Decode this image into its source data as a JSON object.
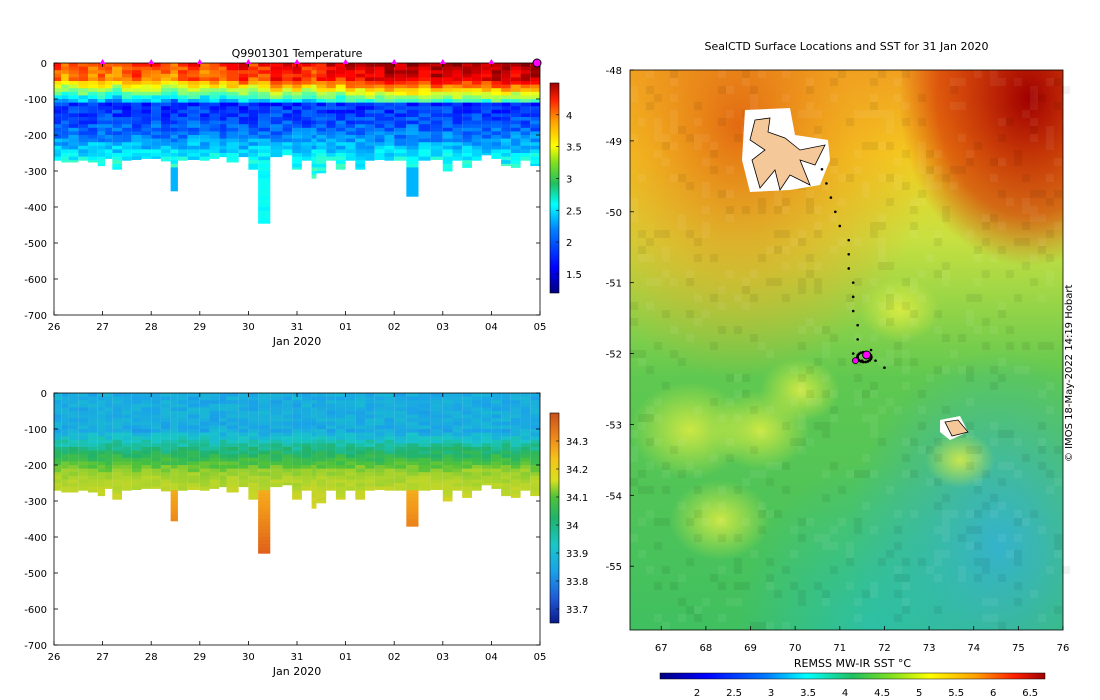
{
  "figure": {
    "credit": "© IMOS 18-May-2022 14:19 Hobart"
  },
  "colors": {
    "jet": [
      "#00007f",
      "#0000ff",
      "#007fff",
      "#00ffff",
      "#7fff7f",
      "#ffff00",
      "#ff7f00",
      "#ff0000",
      "#7f0000"
    ],
    "parula_like": [
      "#0a1a8c",
      "#1f5bd8",
      "#1aa3e8",
      "#19c7c7",
      "#21b36b",
      "#4fc23a",
      "#b8d62a",
      "#f2d21e",
      "#f29a1a",
      "#e0631a",
      "#a81b0f"
    ],
    "land": "#f5c89a",
    "track_marker": "#ff00ff"
  },
  "chart_data": [
    {
      "id": "temperature",
      "type": "heatmap",
      "title": "Q9901301  Temperature",
      "xlabel": "Jan 2020",
      "ylabel": "",
      "x_ticks": [
        "26",
        "27",
        "28",
        "29",
        "30",
        "31",
        "01",
        "02",
        "03",
        "04",
        "05"
      ],
      "y_ticks": [
        0,
        -100,
        -200,
        -300,
        -400,
        -500,
        -600,
        -700
      ],
      "ylim": [
        -700,
        0
      ],
      "xlim": [
        26,
        36
      ],
      "profile_markers_x": [
        27,
        28,
        29,
        30,
        31,
        32,
        33,
        34,
        35
      ],
      "colorbar": {
        "ticks": [
          1.5,
          2,
          2.5,
          3,
          3.5,
          4
        ],
        "range": [
          1.2,
          4.5
        ]
      },
      "profiles": [
        {
          "x": 26.0,
          "w": 0.15,
          "bottom": -270,
          "surf": 3.9
        },
        {
          "x": 26.15,
          "w": 0.15,
          "bottom": -275,
          "surf": 3.7
        },
        {
          "x": 26.3,
          "w": 0.2,
          "bottom": -275,
          "surf": 3.8
        },
        {
          "x": 26.5,
          "w": 0.2,
          "bottom": -270,
          "surf": 3.9
        },
        {
          "x": 26.7,
          "w": 0.2,
          "bottom": -275,
          "surf": 3.8
        },
        {
          "x": 26.9,
          "w": 0.15,
          "bottom": -285,
          "surf": 3.9
        },
        {
          "x": 27.05,
          "w": 0.15,
          "bottom": -265,
          "surf": 3.8
        },
        {
          "x": 27.2,
          "w": 0.2,
          "bottom": -295,
          "surf": 3.7
        },
        {
          "x": 27.4,
          "w": 0.2,
          "bottom": -270,
          "surf": 3.9
        },
        {
          "x": 27.6,
          "w": 0.2,
          "bottom": -268,
          "surf": 4.0
        },
        {
          "x": 27.8,
          "w": 0.2,
          "bottom": -265,
          "surf": 3.9
        },
        {
          "x": 28.0,
          "w": 0.2,
          "bottom": -265,
          "surf": 3.9
        },
        {
          "x": 28.2,
          "w": 0.2,
          "bottom": -272,
          "surf": 3.8
        },
        {
          "x": 28.4,
          "w": 0.15,
          "bottom": -355,
          "surf": 3.7
        },
        {
          "x": 28.55,
          "w": 0.2,
          "bottom": -270,
          "surf": 3.9
        },
        {
          "x": 28.75,
          "w": 0.25,
          "bottom": -268,
          "surf": 4.0
        },
        {
          "x": 29.0,
          "w": 0.2,
          "bottom": -270,
          "surf": 3.8
        },
        {
          "x": 29.2,
          "w": 0.2,
          "bottom": -265,
          "surf": 3.9
        },
        {
          "x": 29.4,
          "w": 0.15,
          "bottom": -260,
          "surf": 3.9
        },
        {
          "x": 29.55,
          "w": 0.25,
          "bottom": -275,
          "surf": 4.0
        },
        {
          "x": 29.8,
          "w": 0.2,
          "bottom": -260,
          "surf": 4.1
        },
        {
          "x": 30.0,
          "w": 0.2,
          "bottom": -295,
          "surf": 3.9
        },
        {
          "x": 30.2,
          "w": 0.25,
          "bottom": -445,
          "surf": 4.0
        },
        {
          "x": 30.45,
          "w": 0.25,
          "bottom": -260,
          "surf": 4.2
        },
        {
          "x": 30.7,
          "w": 0.2,
          "bottom": -255,
          "surf": 4.1
        },
        {
          "x": 30.9,
          "w": 0.2,
          "bottom": -295,
          "surf": 4.2
        },
        {
          "x": 31.1,
          "w": 0.2,
          "bottom": -270,
          "surf": 4.0
        },
        {
          "x": 31.3,
          "w": 0.1,
          "bottom": -320,
          "surf": 3.9
        },
        {
          "x": 31.4,
          "w": 0.2,
          "bottom": -305,
          "surf": 4.1
        },
        {
          "x": 31.6,
          "w": 0.2,
          "bottom": -270,
          "surf": 4.2
        },
        {
          "x": 31.8,
          "w": 0.2,
          "bottom": -295,
          "surf": 4.1
        },
        {
          "x": 32.0,
          "w": 0.2,
          "bottom": -270,
          "surf": 4.3
        },
        {
          "x": 32.2,
          "w": 0.2,
          "bottom": -295,
          "surf": 4.2
        },
        {
          "x": 32.4,
          "w": 0.2,
          "bottom": -270,
          "surf": 4.3
        },
        {
          "x": 32.6,
          "w": 0.2,
          "bottom": -268,
          "surf": 4.3
        },
        {
          "x": 32.8,
          "w": 0.2,
          "bottom": -270,
          "surf": 4.4
        },
        {
          "x": 33.0,
          "w": 0.25,
          "bottom": -270,
          "surf": 4.3
        },
        {
          "x": 33.25,
          "w": 0.25,
          "bottom": -370,
          "surf": 4.4
        },
        {
          "x": 33.5,
          "w": 0.25,
          "bottom": -270,
          "surf": 4.3
        },
        {
          "x": 33.75,
          "w": 0.25,
          "bottom": -268,
          "surf": 4.4
        },
        {
          "x": 34.0,
          "w": 0.2,
          "bottom": -300,
          "surf": 4.3
        },
        {
          "x": 34.2,
          "w": 0.2,
          "bottom": -270,
          "surf": 4.4
        },
        {
          "x": 34.4,
          "w": 0.2,
          "bottom": -290,
          "surf": 4.3
        },
        {
          "x": 34.6,
          "w": 0.2,
          "bottom": -270,
          "surf": 4.4
        },
        {
          "x": 34.8,
          "w": 0.2,
          "bottom": -255,
          "surf": 4.3
        },
        {
          "x": 35.0,
          "w": 0.2,
          "bottom": -265,
          "surf": 4.4
        },
        {
          "x": 35.2,
          "w": 0.2,
          "bottom": -285,
          "surf": 4.4
        },
        {
          "x": 35.4,
          "w": 0.2,
          "bottom": -290,
          "surf": 4.3
        },
        {
          "x": 35.6,
          "w": 0.2,
          "bottom": -270,
          "surf": 4.4
        },
        {
          "x": 35.8,
          "w": 0.2,
          "bottom": -285,
          "surf": 4.4
        }
      ]
    },
    {
      "id": "salinity",
      "type": "heatmap",
      "title": "",
      "xlabel": "Jan 2020",
      "ylabel": "",
      "x_ticks": [
        "26",
        "27",
        "28",
        "29",
        "30",
        "31",
        "01",
        "02",
        "03",
        "04",
        "05"
      ],
      "y_ticks": [
        0,
        -100,
        -200,
        -300,
        -400,
        -500,
        -600,
        -700
      ],
      "ylim": [
        -700,
        0
      ],
      "xlim": [
        26,
        36
      ],
      "colorbar": {
        "ticks": [
          33.7,
          33.8,
          33.9,
          34,
          34.1,
          34.2,
          34.3
        ],
        "range": [
          33.65,
          34.4
        ]
      }
    },
    {
      "id": "sst_map",
      "type": "heatmap",
      "title": "SealCTD Surface Locations and SST for 31 Jan 2020",
      "xlabel": "",
      "ylabel": "",
      "x_ticks": [
        "67",
        "68",
        "69",
        "70",
        "71",
        "72",
        "73",
        "74",
        "75",
        "76"
      ],
      "y_ticks": [
        "-48",
        "-49",
        "-50",
        "-51",
        "-52",
        "-53",
        "-54",
        "-55"
      ],
      "xlim": [
        66,
        76
      ],
      "ylim": [
        -55.9,
        -48
      ],
      "colorbar": {
        "label": "REMSS MW-IR SST °C",
        "ticks": [
          "2",
          "2.5",
          "3",
          "3.5",
          "4",
          "4.5",
          "5",
          "5.5",
          "6",
          "6.5"
        ],
        "range": [
          1.5,
          6.7
        ]
      },
      "track": [
        {
          "lon": 70.6,
          "lat": -49.4
        },
        {
          "lon": 70.7,
          "lat": -49.6
        },
        {
          "lon": 70.8,
          "lat": -49.8
        },
        {
          "lon": 70.9,
          "lat": -50.0
        },
        {
          "lon": 71.0,
          "lat": -50.2
        },
        {
          "lon": 71.2,
          "lat": -50.4
        },
        {
          "lon": 71.2,
          "lat": -50.6
        },
        {
          "lon": 71.2,
          "lat": -50.8
        },
        {
          "lon": 71.3,
          "lat": -51.0
        },
        {
          "lon": 71.3,
          "lat": -51.2
        },
        {
          "lon": 71.3,
          "lat": -51.4
        },
        {
          "lon": 71.4,
          "lat": -51.6
        },
        {
          "lon": 71.4,
          "lat": -51.8
        },
        {
          "lon": 71.3,
          "lat": -52.0
        },
        {
          "lon": 71.5,
          "lat": -52.1
        },
        {
          "lon": 71.6,
          "lat": -52.0
        },
        {
          "lon": 71.7,
          "lat": -51.95
        },
        {
          "lon": 71.8,
          "lat": -52.1
        },
        {
          "lon": 72.0,
          "lat": -52.2
        },
        {
          "lon": 71.4,
          "lat": -52.05
        }
      ],
      "track_end": {
        "lon": 71.6,
        "lat": -52.02
      }
    }
  ]
}
